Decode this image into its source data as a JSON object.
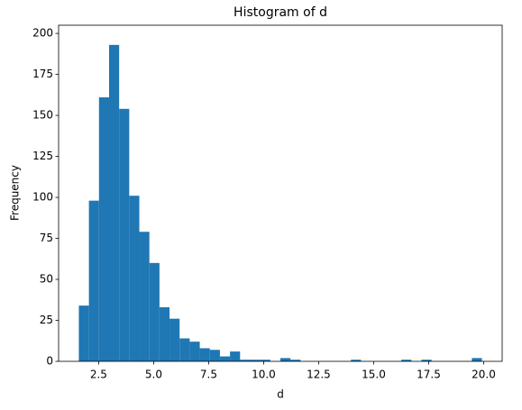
{
  "chart_data": {
    "type": "histogram",
    "title": "Histogram of d",
    "x_label": "d",
    "y_label": "Frequency",
    "color": "#1f77b4",
    "bins": [
      1.6,
      2.058,
      2.516,
      2.974,
      3.432,
      3.89,
      4.348,
      4.806,
      5.264,
      5.722,
      6.18,
      6.638,
      7.096,
      7.554,
      8.012,
      8.47,
      8.928,
      9.386,
      9.844,
      10.302,
      10.76,
      11.218,
      11.676,
      12.134,
      12.592,
      13.05,
      13.508,
      13.966,
      14.424,
      14.882,
      15.34,
      15.798,
      16.256,
      16.714,
      17.172,
      17.63,
      18.088,
      18.546,
      19.004,
      19.462,
      19.92
    ],
    "values": [
      34,
      98,
      161,
      193,
      154,
      101,
      79,
      60,
      33,
      26,
      14,
      12,
      8,
      7,
      3,
      6,
      1,
      1,
      1,
      0,
      2,
      1,
      0,
      0,
      0,
      0,
      0,
      1,
      0,
      0,
      0,
      0,
      1,
      0,
      1,
      0,
      0,
      0,
      0,
      2
    ],
    "xlim": [
      0.68,
      20.84
    ],
    "ylim": [
      0,
      205
    ],
    "xticks": [
      2.5,
      {
        "value": 5,
        "label": "5.0"
      },
      7.5,
      {
        "value": 10,
        "label": "10.0"
      },
      12.5,
      {
        "value": 15,
        "label": "15.0"
      },
      17.5,
      {
        "value": 20,
        "label": "20.0"
      }
    ],
    "yticks": [
      0,
      25,
      50,
      75,
      100,
      125,
      150,
      175,
      200
    ]
  }
}
